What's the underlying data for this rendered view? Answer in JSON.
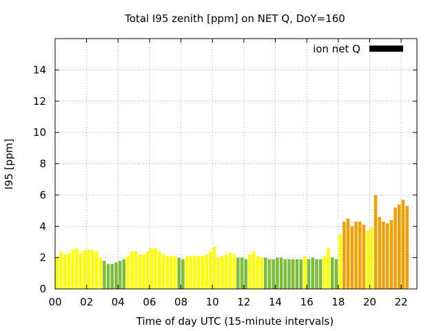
{
  "chart_data": {
    "type": "bar",
    "title": "Total I95 zenith [ppm] on NET Q, DoY=160",
    "xlabel": "Time of day UTC (15-minute intervals)",
    "ylabel": "I95 [ppm]",
    "xlim": [
      0,
      23
    ],
    "ylim": [
      0,
      16
    ],
    "xticks": [
      {
        "value": 0,
        "label": "00"
      },
      {
        "value": 2,
        "label": "02"
      },
      {
        "value": 4,
        "label": "04"
      },
      {
        "value": 6,
        "label": "06"
      },
      {
        "value": 8,
        "label": "08"
      },
      {
        "value": 10,
        "label": "10"
      },
      {
        "value": 12,
        "label": "12"
      },
      {
        "value": 14,
        "label": "14"
      },
      {
        "value": 16,
        "label": "16"
      },
      {
        "value": 18,
        "label": "18"
      },
      {
        "value": 20,
        "label": "20"
      },
      {
        "value": 22,
        "label": "22"
      }
    ],
    "yticks": [
      {
        "value": 0,
        "label": "0"
      },
      {
        "value": 2,
        "label": "2"
      },
      {
        "value": 4,
        "label": "4"
      },
      {
        "value": 6,
        "label": "6"
      },
      {
        "value": 8,
        "label": "8"
      },
      {
        "value": 10,
        "label": "10"
      },
      {
        "value": 12,
        "label": "12"
      },
      {
        "value": 14,
        "label": "14"
      }
    ],
    "grid": true,
    "legend": {
      "label": "ion net Q",
      "position": "top-right",
      "color": "#000000"
    },
    "interval_hours": 0.25,
    "colors": {
      "yellow": "#ffff00",
      "green": "#7cbd3c",
      "orange": "#f0a000"
    },
    "series": [
      {
        "values": [
          2.0,
          2.4,
          2.2,
          2.3,
          2.5,
          2.6,
          2.3,
          2.5,
          2.5,
          2.5,
          2.4,
          2.0,
          1.8,
          1.6,
          1.6,
          1.7,
          1.8,
          1.9,
          2.1,
          2.4,
          2.4,
          2.2,
          2.2,
          2.4,
          2.6,
          2.6,
          2.4,
          2.2,
          2.1,
          2.1,
          2.1,
          2.0,
          1.9,
          2.1,
          2.1,
          2.1,
          2.1,
          2.1,
          2.2,
          2.4,
          2.7,
          2.0,
          2.1,
          2.2,
          2.3,
          2.2,
          2.0,
          2.0,
          1.9,
          2.2,
          2.4,
          2.1,
          2.0,
          2.0,
          1.9,
          1.9,
          2.0,
          2.0,
          1.9,
          1.9,
          1.9,
          1.9,
          1.9,
          2.1,
          1.9,
          2.0,
          1.9,
          1.9,
          2.1,
          2.6,
          2.0,
          1.9,
          3.5,
          4.3,
          4.5,
          4.0,
          4.3,
          4.3,
          4.1,
          3.7,
          3.9,
          6.0,
          4.6,
          4.3,
          4.2,
          4.4,
          5.2,
          5.4,
          5.7,
          5.3
        ],
        "levels": [
          "yellow",
          "yellow",
          "yellow",
          "yellow",
          "yellow",
          "yellow",
          "yellow",
          "yellow",
          "yellow",
          "yellow",
          "yellow",
          "yellow",
          "green",
          "green",
          "green",
          "green",
          "green",
          "green",
          "yellow",
          "yellow",
          "yellow",
          "yellow",
          "yellow",
          "yellow",
          "yellow",
          "yellow",
          "yellow",
          "yellow",
          "yellow",
          "yellow",
          "yellow",
          "green",
          "green",
          "yellow",
          "yellow",
          "yellow",
          "yellow",
          "yellow",
          "yellow",
          "yellow",
          "yellow",
          "yellow",
          "yellow",
          "yellow",
          "yellow",
          "yellow",
          "green",
          "green",
          "green",
          "yellow",
          "yellow",
          "yellow",
          "yellow",
          "green",
          "green",
          "green",
          "green",
          "green",
          "green",
          "green",
          "green",
          "green",
          "green",
          "yellow",
          "green",
          "green",
          "green",
          "green",
          "yellow",
          "yellow",
          "green",
          "green",
          "yellow",
          "orange",
          "orange",
          "orange",
          "orange",
          "orange",
          "orange",
          "yellow",
          "yellow",
          "orange",
          "orange",
          "orange",
          "orange",
          "orange",
          "orange",
          "orange",
          "orange",
          "orange"
        ]
      }
    ]
  }
}
